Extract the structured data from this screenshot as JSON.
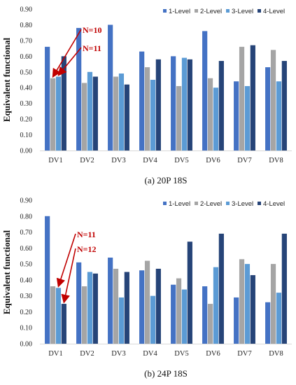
{
  "colors": {
    "series": [
      "#4472c4",
      "#a5a5a5",
      "#5b9bd5",
      "#264478"
    ],
    "annotation": "#c00000",
    "axis": "#d9d9d9"
  },
  "chart_data": [
    {
      "type": "bar",
      "caption": "(a) 20P 18S",
      "ylabel": "Equivalent functional",
      "ylim": [
        0,
        0.9
      ],
      "yticks": [
        "0.00",
        "0.10",
        "0.20",
        "0.30",
        "0.40",
        "0.50",
        "0.60",
        "0.70",
        "0.80",
        "0.90"
      ],
      "legend_position": "top",
      "grid": false,
      "categories": [
        "DV1",
        "DV2",
        "DV3",
        "DV4",
        "DV5",
        "DV6",
        "DV7",
        "DV8"
      ],
      "series": [
        {
          "name": "1-Level",
          "values": [
            0.66,
            0.78,
            0.8,
            0.63,
            0.6,
            0.76,
            0.44,
            0.53
          ]
        },
        {
          "name": "2-Level",
          "values": [
            0.46,
            0.43,
            0.47,
            0.53,
            0.41,
            0.46,
            0.66,
            0.64
          ]
        },
        {
          "name": "3-Level",
          "values": [
            0.47,
            0.5,
            0.49,
            0.45,
            0.59,
            0.4,
            0.41,
            0.44
          ]
        },
        {
          "name": "4-Level",
          "values": [
            0.6,
            0.47,
            0.42,
            0.58,
            0.58,
            0.57,
            0.67,
            0.57
          ]
        }
      ],
      "annotations": [
        {
          "text": "N=10",
          "category": "DV1",
          "series": 1
        },
        {
          "text": "N=11",
          "category": "DV1",
          "series": 2
        }
      ]
    },
    {
      "type": "bar",
      "caption": "(b) 24P 18S",
      "ylabel": "Equivalent functional",
      "ylim": [
        0,
        0.9
      ],
      "yticks": [
        "0.00",
        "0.10",
        "0.20",
        "0.30",
        "0.40",
        "0.50",
        "0.60",
        "0.70",
        "0.80",
        "0.90"
      ],
      "legend_position": "top",
      "grid": false,
      "categories": [
        "DV1",
        "DV2",
        "DV3",
        "DV4",
        "DV5",
        "DV6",
        "DV7",
        "DV8"
      ],
      "series": [
        {
          "name": "1-Level",
          "values": [
            0.8,
            0.51,
            0.54,
            0.46,
            0.37,
            0.36,
            0.29,
            0.26
          ]
        },
        {
          "name": "2-Level",
          "values": [
            0.36,
            0.36,
            0.47,
            0.52,
            0.41,
            0.25,
            0.53,
            0.5
          ]
        },
        {
          "name": "3-Level",
          "values": [
            0.35,
            0.45,
            0.29,
            0.3,
            0.34,
            0.48,
            0.5,
            0.32
          ]
        },
        {
          "name": "4-Level",
          "values": [
            0.25,
            0.44,
            0.45,
            0.47,
            0.64,
            0.69,
            0.43,
            0.69
          ]
        }
      ],
      "annotations": [
        {
          "text": "N=11",
          "category": "DV1",
          "series": 2
        },
        {
          "text": "N=12",
          "category": "DV1",
          "series": 3
        }
      ]
    }
  ]
}
